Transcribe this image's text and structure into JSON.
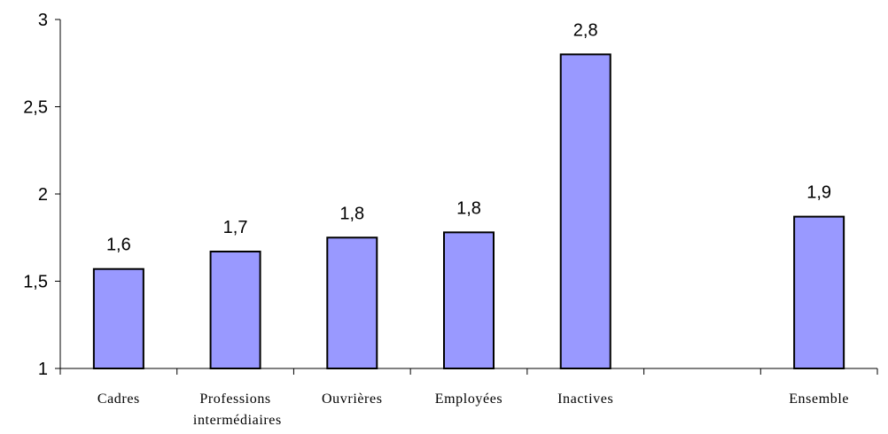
{
  "chart_data": {
    "type": "bar",
    "categories": [
      "Cadres",
      "Professions intermédiaires",
      "Ouvrières",
      "Employées",
      "Inactives",
      null,
      "Ensemble"
    ],
    "values": [
      1.57,
      1.67,
      1.75,
      1.78,
      2.8,
      null,
      1.87
    ],
    "value_labels": [
      "1,6",
      "1,7",
      "1,8",
      "1,8",
      "2,8",
      null,
      "1,9"
    ],
    "color": "#9999ff",
    "ylim": [
      1,
      3
    ],
    "yticks": [
      1,
      {
        "value": 1.5,
        "label": "1,5"
      },
      2,
      {
        "value": 2.5,
        "label": "2,5"
      },
      3
    ]
  }
}
